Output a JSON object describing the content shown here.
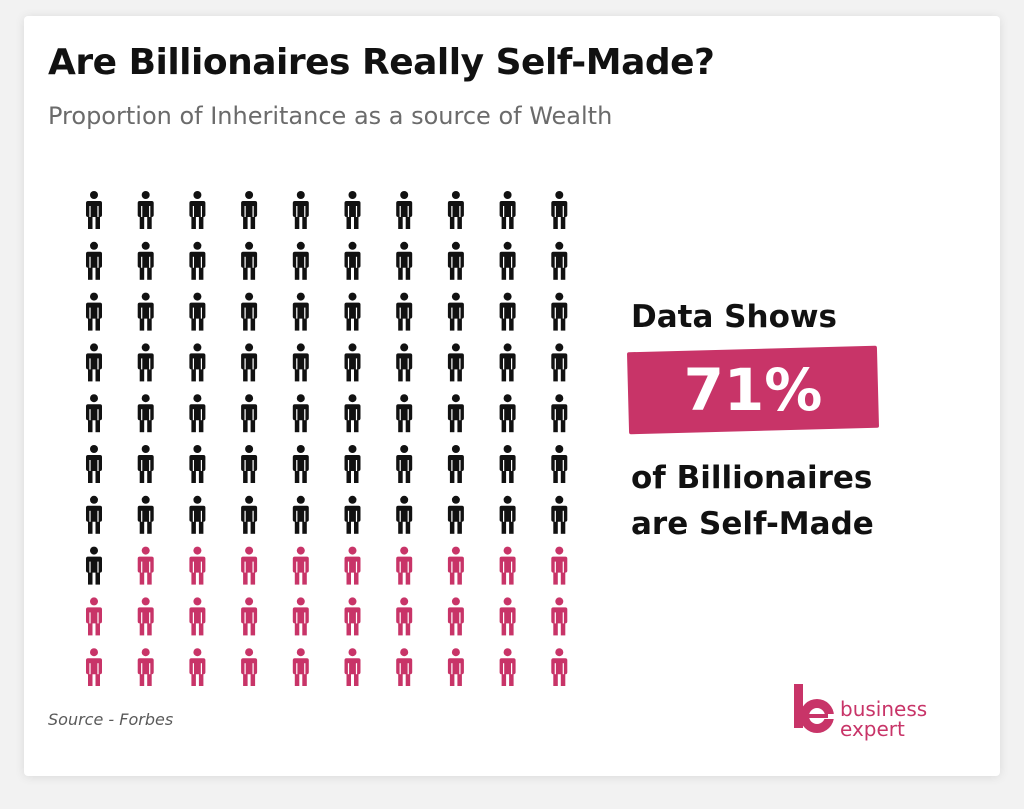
{
  "title": "Are Billionaires Really Self-Made?",
  "subtitle": "Proportion of Inheritance as a source of Wealth",
  "chart_data": {
    "type": "waffle",
    "rows": 10,
    "columns": 10,
    "fill_order": "row-major",
    "total": 100,
    "series": [
      {
        "value": 71,
        "color": "#111111"
      },
      {
        "value": 29,
        "color": "#c83468"
      }
    ]
  },
  "callout": {
    "line1": "Data Shows",
    "value": "71%",
    "line2": "of Billionaires",
    "line3": "are Self-Made"
  },
  "source": "Source - Forbes",
  "logo": {
    "line1": "business",
    "line2": "expert",
    "color": "#c83468"
  }
}
